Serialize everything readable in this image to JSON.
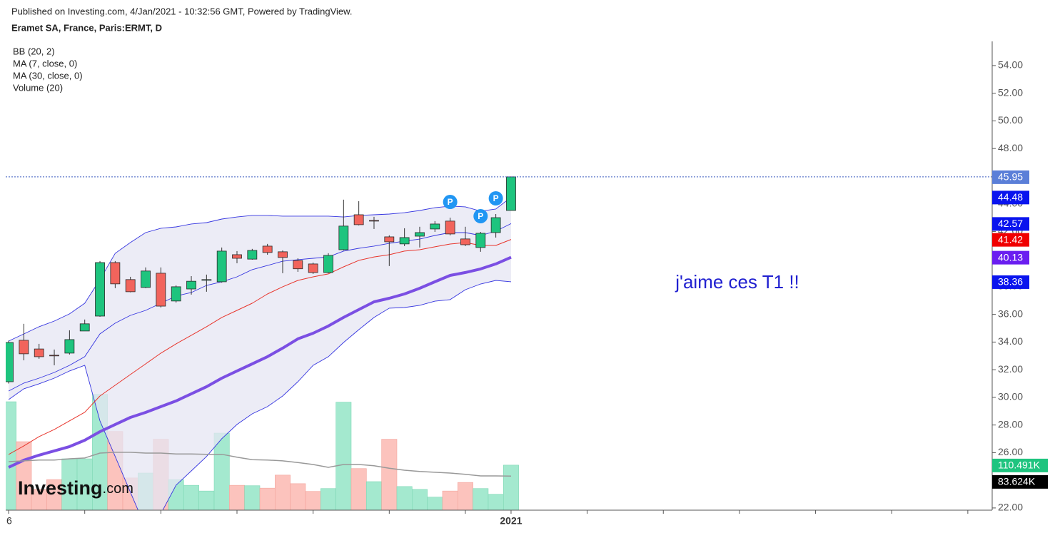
{
  "chart_data": {
    "type": "candlestick",
    "subtitle": "Published on Investing.com, 4/Jan/2021 - 10:32:56 GMT, Powered by TradingView.",
    "title": "Eramet SA, France, Paris:ERMT, D",
    "annotation": "j'aime ces T1 !!",
    "logo": {
      "name": "Investing",
      "suffix": ".com"
    },
    "categories": [
      "6",
      null,
      null,
      null,
      null,
      null,
      null,
      null,
      null,
      null,
      null,
      null,
      null,
      null,
      null,
      null,
      null,
      null,
      null,
      null,
      null,
      null,
      null,
      null,
      null,
      null,
      null,
      null,
      null,
      null,
      null,
      null,
      null,
      "2021"
    ],
    "open": [
      31.13,
      34.13,
      33.5,
      33.05,
      33.2,
      34.8,
      35.88,
      39.75,
      38.52,
      37.95,
      38.98,
      36.97,
      37.84,
      38.5,
      38.36,
      40.32,
      40.0,
      40.94,
      40.53,
      39.9,
      39.65,
      39.03,
      40.68,
      43.21,
      42.8,
      41.61,
      41.1,
      41.66,
      42.18,
      42.75,
      41.46,
      40.84,
      41.92,
      43.52
    ],
    "high": [
      34.1,
      35.32,
      33.87,
      33.46,
      34.85,
      35.63,
      39.86,
      39.86,
      38.72,
      39.4,
      39.4,
      38.1,
      38.77,
      38.88,
      40.84,
      40.58,
      40.74,
      41.1,
      40.63,
      40.06,
      39.75,
      40.43,
      44.3,
      44.19,
      43.06,
      41.72,
      42.23,
      42.34,
      42.75,
      43.0,
      42.34,
      41.97,
      43.26,
      45.95
    ],
    "low": [
      31.0,
      32.68,
      32.79,
      32.32,
      33.1,
      34.8,
      35.83,
      37.9,
      37.6,
      37.9,
      36.5,
      36.86,
      37.43,
      37.64,
      38.3,
      39.7,
      39.96,
      40.32,
      38.98,
      39.08,
      38.93,
      38.98,
      40.63,
      42.44,
      42.18,
      39.5,
      40.94,
      40.84,
      41.97,
      41.72,
      40.94,
      40.53,
      41.56,
      43.52
    ],
    "close": [
      33.97,
      33.15,
      32.94,
      33.0,
      34.18,
      35.32,
      39.75,
      38.21,
      37.64,
      39.14,
      36.6,
      38.0,
      38.4,
      38.52,
      40.58,
      40.06,
      40.63,
      40.48,
      40.12,
      39.3,
      39.03,
      40.27,
      42.39,
      42.49,
      42.8,
      41.25,
      41.56,
      41.92,
      42.54,
      41.82,
      41.04,
      41.87,
      43.0,
      45.95
    ],
    "up_color": "#1ec47e",
    "down_color": "#f2645c",
    "close_tag_color": "#5b7fd8",
    "bands": {
      "name": "BB (20, 2)",
      "color": "#3535e0",
      "fill": "#e6e6f3",
      "tag_color": "#0a14ee",
      "upper": [
        34.07,
        34.59,
        35.11,
        35.52,
        36.04,
        36.81,
        38.51,
        40.42,
        41.2,
        41.92,
        42.23,
        42.33,
        42.54,
        42.64,
        42.9,
        43.05,
        43.16,
        43.16,
        43.11,
        43.11,
        43.11,
        43.11,
        43.05,
        43.16,
        43.21,
        43.26,
        43.36,
        43.52,
        43.72,
        43.83,
        43.78,
        43.47,
        43.62,
        44.48
      ],
      "middle": [
        30.46,
        31.03,
        31.39,
        31.8,
        32.32,
        32.94,
        34.59,
        35.37,
        35.93,
        36.29,
        36.81,
        37.33,
        37.58,
        38.1,
        38.36,
        38.72,
        39.24,
        39.54,
        39.85,
        39.96,
        40.06,
        40.16,
        40.58,
        40.78,
        40.94,
        41.14,
        41.3,
        41.45,
        41.71,
        41.92,
        41.92,
        41.71,
        42.02,
        42.57
      ],
      "lower": [
        29.84,
        30.62,
        30.98,
        31.39,
        31.91,
        32.32,
        28.3,
        25.72,
        23.14,
        20.56,
        21.59,
        23.65,
        24.68,
        25.72,
        27.01,
        28.04,
        28.81,
        29.33,
        30.1,
        31.13,
        32.32,
        32.94,
        33.97,
        34.9,
        35.78,
        36.45,
        36.5,
        36.66,
        36.96,
        37.07,
        37.79,
        38.2,
        38.46,
        38.36
      ]
    },
    "series": [
      {
        "name": "MA (7, close, 0)",
        "color": "#e8352c",
        "tag_color": "#f00000",
        "width": 1,
        "values": [
          25.87,
          26.49,
          27.16,
          27.68,
          28.3,
          28.92,
          30.1,
          30.88,
          31.65,
          32.42,
          33.2,
          33.87,
          34.49,
          35.11,
          35.78,
          36.29,
          36.81,
          37.48,
          38.0,
          38.46,
          38.72,
          38.93,
          39.44,
          39.91,
          40.16,
          40.32,
          40.58,
          40.68,
          40.89,
          41.09,
          41.2,
          40.99,
          40.99,
          41.42
        ]
      },
      {
        "name": "MA (30, close, 0)",
        "color": "#7b4fe3",
        "tag_color": "#6a1ef0",
        "width": 4,
        "values": [
          24.94,
          25.46,
          25.82,
          26.13,
          26.44,
          26.9,
          27.52,
          28.04,
          28.55,
          28.91,
          29.33,
          29.74,
          30.26,
          30.77,
          31.39,
          31.91,
          32.42,
          32.94,
          33.56,
          34.23,
          34.64,
          35.16,
          35.78,
          36.35,
          36.91,
          37.17,
          37.48,
          37.89,
          38.36,
          38.82,
          39.03,
          39.29,
          39.65,
          40.13
        ]
      }
    ],
    "volume": {
      "name": "Volume (20)",
      "up_color": "#a4e9cf",
      "down_color": "#fcc3bd",
      "up_tag_color": "#1fc47f",
      "values": [
        266000,
        168000,
        51000,
        75000,
        126000,
        126000,
        284000,
        193000,
        79000,
        91000,
        174000,
        75000,
        61000,
        47000,
        189000,
        61000,
        60000,
        54000,
        86000,
        65000,
        46000,
        53000,
        265000,
        102000,
        70000,
        174000,
        58000,
        51000,
        32000,
        47000,
        68000,
        53000,
        39000,
        110491
      ],
      "value_labels": [
        null,
        null,
        null,
        null,
        null,
        null,
        null,
        null,
        null,
        null,
        null,
        null,
        null,
        null,
        null,
        null,
        null,
        null,
        null,
        null,
        null,
        null,
        null,
        null,
        null,
        null,
        null,
        null,
        null,
        null,
        null,
        null,
        null,
        "110.491K"
      ],
      "ma": [
        119000,
        121000,
        123000,
        123000,
        126000,
        128000,
        140000,
        142000,
        142000,
        140000,
        140000,
        138000,
        138000,
        137000,
        137000,
        130000,
        124000,
        123000,
        121000,
        117000,
        112000,
        105000,
        112000,
        112000,
        109000,
        103000,
        98000,
        95000,
        93000,
        91000,
        88000,
        84000,
        84000,
        83624
      ],
      "ma_labels": [
        null,
        null,
        null,
        null,
        null,
        null,
        null,
        null,
        null,
        null,
        null,
        null,
        null,
        null,
        null,
        null,
        null,
        null,
        null,
        null,
        null,
        null,
        null,
        null,
        null,
        null,
        null,
        null,
        null,
        null,
        null,
        null,
        null,
        "83.624K"
      ],
      "ma_color": "#999999",
      "ma_tag_color": "#000000",
      "lim": [
        0,
        1150000
      ]
    },
    "markers": [
      {
        "at": 29,
        "text": "P"
      },
      {
        "at": 31,
        "text": "P"
      },
      {
        "at": 32,
        "text": "P"
      }
    ],
    "marker_color": "#2196f3",
    "last_line_color": "#3a5bbf",
    "xlim": [
      -0.19,
      64.6
    ],
    "xticks": [
      0,
      5,
      10,
      15,
      20,
      25,
      30,
      33,
      38,
      43,
      48,
      53,
      58,
      63
    ],
    "ylim": [
      21.84,
      55.75
    ],
    "yticks": [
      {
        "value": 22,
        "label": "22.00"
      },
      {
        "value": 24,
        "label": "24.00"
      },
      {
        "value": 26,
        "label": "26.00"
      },
      {
        "value": 28,
        "label": "28.00"
      },
      {
        "value": 30,
        "label": "30.00"
      },
      {
        "value": 32,
        "label": "32.00"
      },
      {
        "value": 34,
        "label": "34.00"
      },
      {
        "value": 36,
        "label": "36.00"
      },
      {
        "value": 38,
        "label": "38.00"
      },
      {
        "value": 40,
        "label": "40.00"
      },
      {
        "value": 42,
        "label": "42.00"
      },
      {
        "value": 44,
        "label": "44.00"
      },
      {
        "value": 46,
        "label": "46.00"
      },
      {
        "value": 48,
        "label": "48.00"
      },
      {
        "value": 50,
        "label": "50.00"
      },
      {
        "value": 52,
        "label": "52.00"
      },
      {
        "value": 54,
        "label": "54.00"
      }
    ]
  }
}
